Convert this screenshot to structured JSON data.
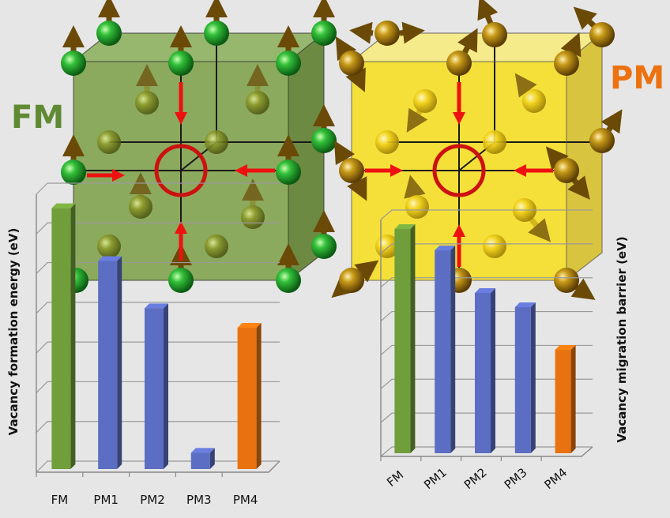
{
  "labels": {
    "fm": "FM",
    "pm": "PM"
  },
  "colors": {
    "fm_label": "#5f8a33",
    "pm_label": "#ec7211",
    "fm_cube": "#6f9a3a",
    "pm_cube": "#f0d820",
    "fm_atom": "#22a02a",
    "pm_atom": "#b88a10",
    "arrow_spin": "#6b4a08",
    "vacancy_arrow": "#ee1111",
    "vacancy_ring": "#cc1111"
  },
  "chart_data": [
    {
      "type": "bar",
      "title": "",
      "xlabel": "",
      "ylabel": "Vacancy formation energy (eV)",
      "categories": [
        "FM",
        "PM1",
        "PM2",
        "PM3",
        "PM4"
      ],
      "values": [
        0.95,
        0.76,
        0.59,
        0.07,
        0.52
      ],
      "bar_colors": [
        "#6f9e3a",
        "#5b6ec3",
        "#5b6ec3",
        "#5b6ec3",
        "#e8720f"
      ],
      "ylim": [
        0,
        1
      ],
      "grid": true,
      "tick_label_rotation": 0
    },
    {
      "type": "bar",
      "title": "",
      "xlabel": "",
      "ylabel": "Vacancy migration barrier (eV)",
      "categories": [
        "FM",
        "PM1",
        "PM2",
        "PM3",
        "PM4"
      ],
      "values": [
        0.96,
        0.87,
        0.69,
        0.63,
        0.45
      ],
      "bar_colors": [
        "#6f9e3a",
        "#5b6ec3",
        "#5b6ec3",
        "#5b6ec3",
        "#e8720f"
      ],
      "ylim": [
        0,
        1
      ],
      "grid": true,
      "tick_label_rotation": -40
    }
  ]
}
